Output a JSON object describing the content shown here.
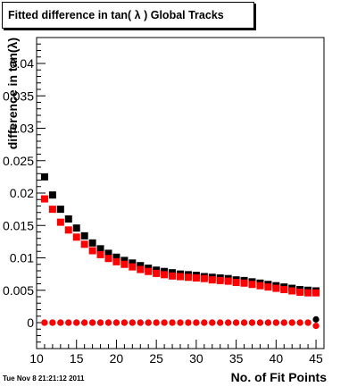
{
  "chart_data": {
    "type": "scatter",
    "title": "Fitted difference in tan( λ )  Global Tracks",
    "xlabel": "No. of Fit Points",
    "ylabel": "difference in tan(λ)",
    "xlim": [
      10,
      46
    ],
    "ylim": [
      -0.004,
      0.044
    ],
    "x_ticks": [
      10,
      15,
      20,
      25,
      30,
      35,
      40,
      45
    ],
    "y_ticks": [
      0,
      0.005,
      0.01,
      0.015,
      0.02,
      0.025,
      0.03,
      0.035,
      0.04
    ],
    "y_tick_labels": [
      "0",
      "0.005",
      "0.01",
      "0.015",
      "0.02",
      "0.025",
      "0.03",
      "0.035",
      "0.04"
    ],
    "grid": false,
    "series": [
      {
        "color": "#000000",
        "marker": "square",
        "x": [
          11,
          12,
          13,
          14,
          15,
          16,
          17,
          18,
          19,
          20,
          21,
          22,
          23,
          24,
          25,
          26,
          27,
          28,
          29,
          30,
          31,
          32,
          33,
          34,
          35,
          36,
          37,
          38,
          39,
          40,
          41,
          42,
          43,
          44,
          45
        ],
        "values": [
          0.0225,
          0.0197,
          0.0175,
          0.016,
          0.0146,
          0.0134,
          0.0123,
          0.0114,
          0.0107,
          0.0101,
          0.0096,
          0.0092,
          0.0088,
          0.0084,
          0.0081,
          0.0079,
          0.0077,
          0.0075,
          0.0074,
          0.0073,
          0.0071,
          0.007,
          0.0069,
          0.0068,
          0.0066,
          0.0065,
          0.0063,
          0.0061,
          0.0059,
          0.0057,
          0.0055,
          0.0053,
          0.0051,
          0.005,
          0.0049
        ]
      },
      {
        "color": "#ff0000",
        "marker": "square",
        "x": [
          11,
          12,
          13,
          14,
          15,
          16,
          17,
          18,
          19,
          20,
          21,
          22,
          23,
          24,
          25,
          26,
          27,
          28,
          29,
          30,
          31,
          32,
          33,
          34,
          35,
          36,
          37,
          38,
          39,
          40,
          41,
          42,
          43,
          44,
          45
        ],
        "values": [
          0.0191,
          0.0175,
          0.0155,
          0.0143,
          0.0132,
          0.0121,
          0.0111,
          0.0105,
          0.0099,
          0.0094,
          0.009,
          0.0086,
          0.0082,
          0.0079,
          0.0076,
          0.0074,
          0.0072,
          0.0071,
          0.007,
          0.0069,
          0.0068,
          0.0066,
          0.0065,
          0.0064,
          0.0062,
          0.0061,
          0.0059,
          0.0057,
          0.0055,
          0.0053,
          0.0051,
          0.0049,
          0.0047,
          0.0046,
          0.0046
        ]
      },
      {
        "color": "#000000",
        "marker": "circle",
        "x": [
          11,
          12,
          13,
          14,
          15,
          16,
          17,
          18,
          19,
          20,
          21,
          22,
          23,
          24,
          25,
          26,
          27,
          28,
          29,
          30,
          31,
          32,
          33,
          34,
          35,
          36,
          37,
          38,
          39,
          40,
          41,
          42,
          43,
          44,
          45
        ],
        "values": [
          0,
          0,
          0,
          0,
          0,
          0,
          0,
          0,
          0,
          0,
          0,
          0,
          0,
          0,
          0,
          0,
          0,
          0,
          0,
          0,
          0,
          0,
          0,
          0,
          0,
          0,
          0,
          0,
          0,
          0,
          0,
          0,
          0,
          0,
          0.0005
        ]
      },
      {
        "color": "#ff0000",
        "marker": "circle",
        "x": [
          11,
          12,
          13,
          14,
          15,
          16,
          17,
          18,
          19,
          20,
          21,
          22,
          23,
          24,
          25,
          26,
          27,
          28,
          29,
          30,
          31,
          32,
          33,
          34,
          35,
          36,
          37,
          38,
          39,
          40,
          41,
          42,
          43,
          44,
          45
        ],
        "values": [
          0,
          0,
          0,
          0,
          0,
          0,
          0,
          0,
          0,
          0,
          0,
          0,
          0,
          0,
          0,
          0,
          0,
          0,
          0,
          0,
          0,
          0,
          0,
          0,
          0,
          0,
          0,
          0,
          0,
          0,
          0,
          0,
          0,
          0,
          -0.0005
        ]
      }
    ]
  },
  "timestamp": "Tue Nov  8 21:21:12 2011"
}
